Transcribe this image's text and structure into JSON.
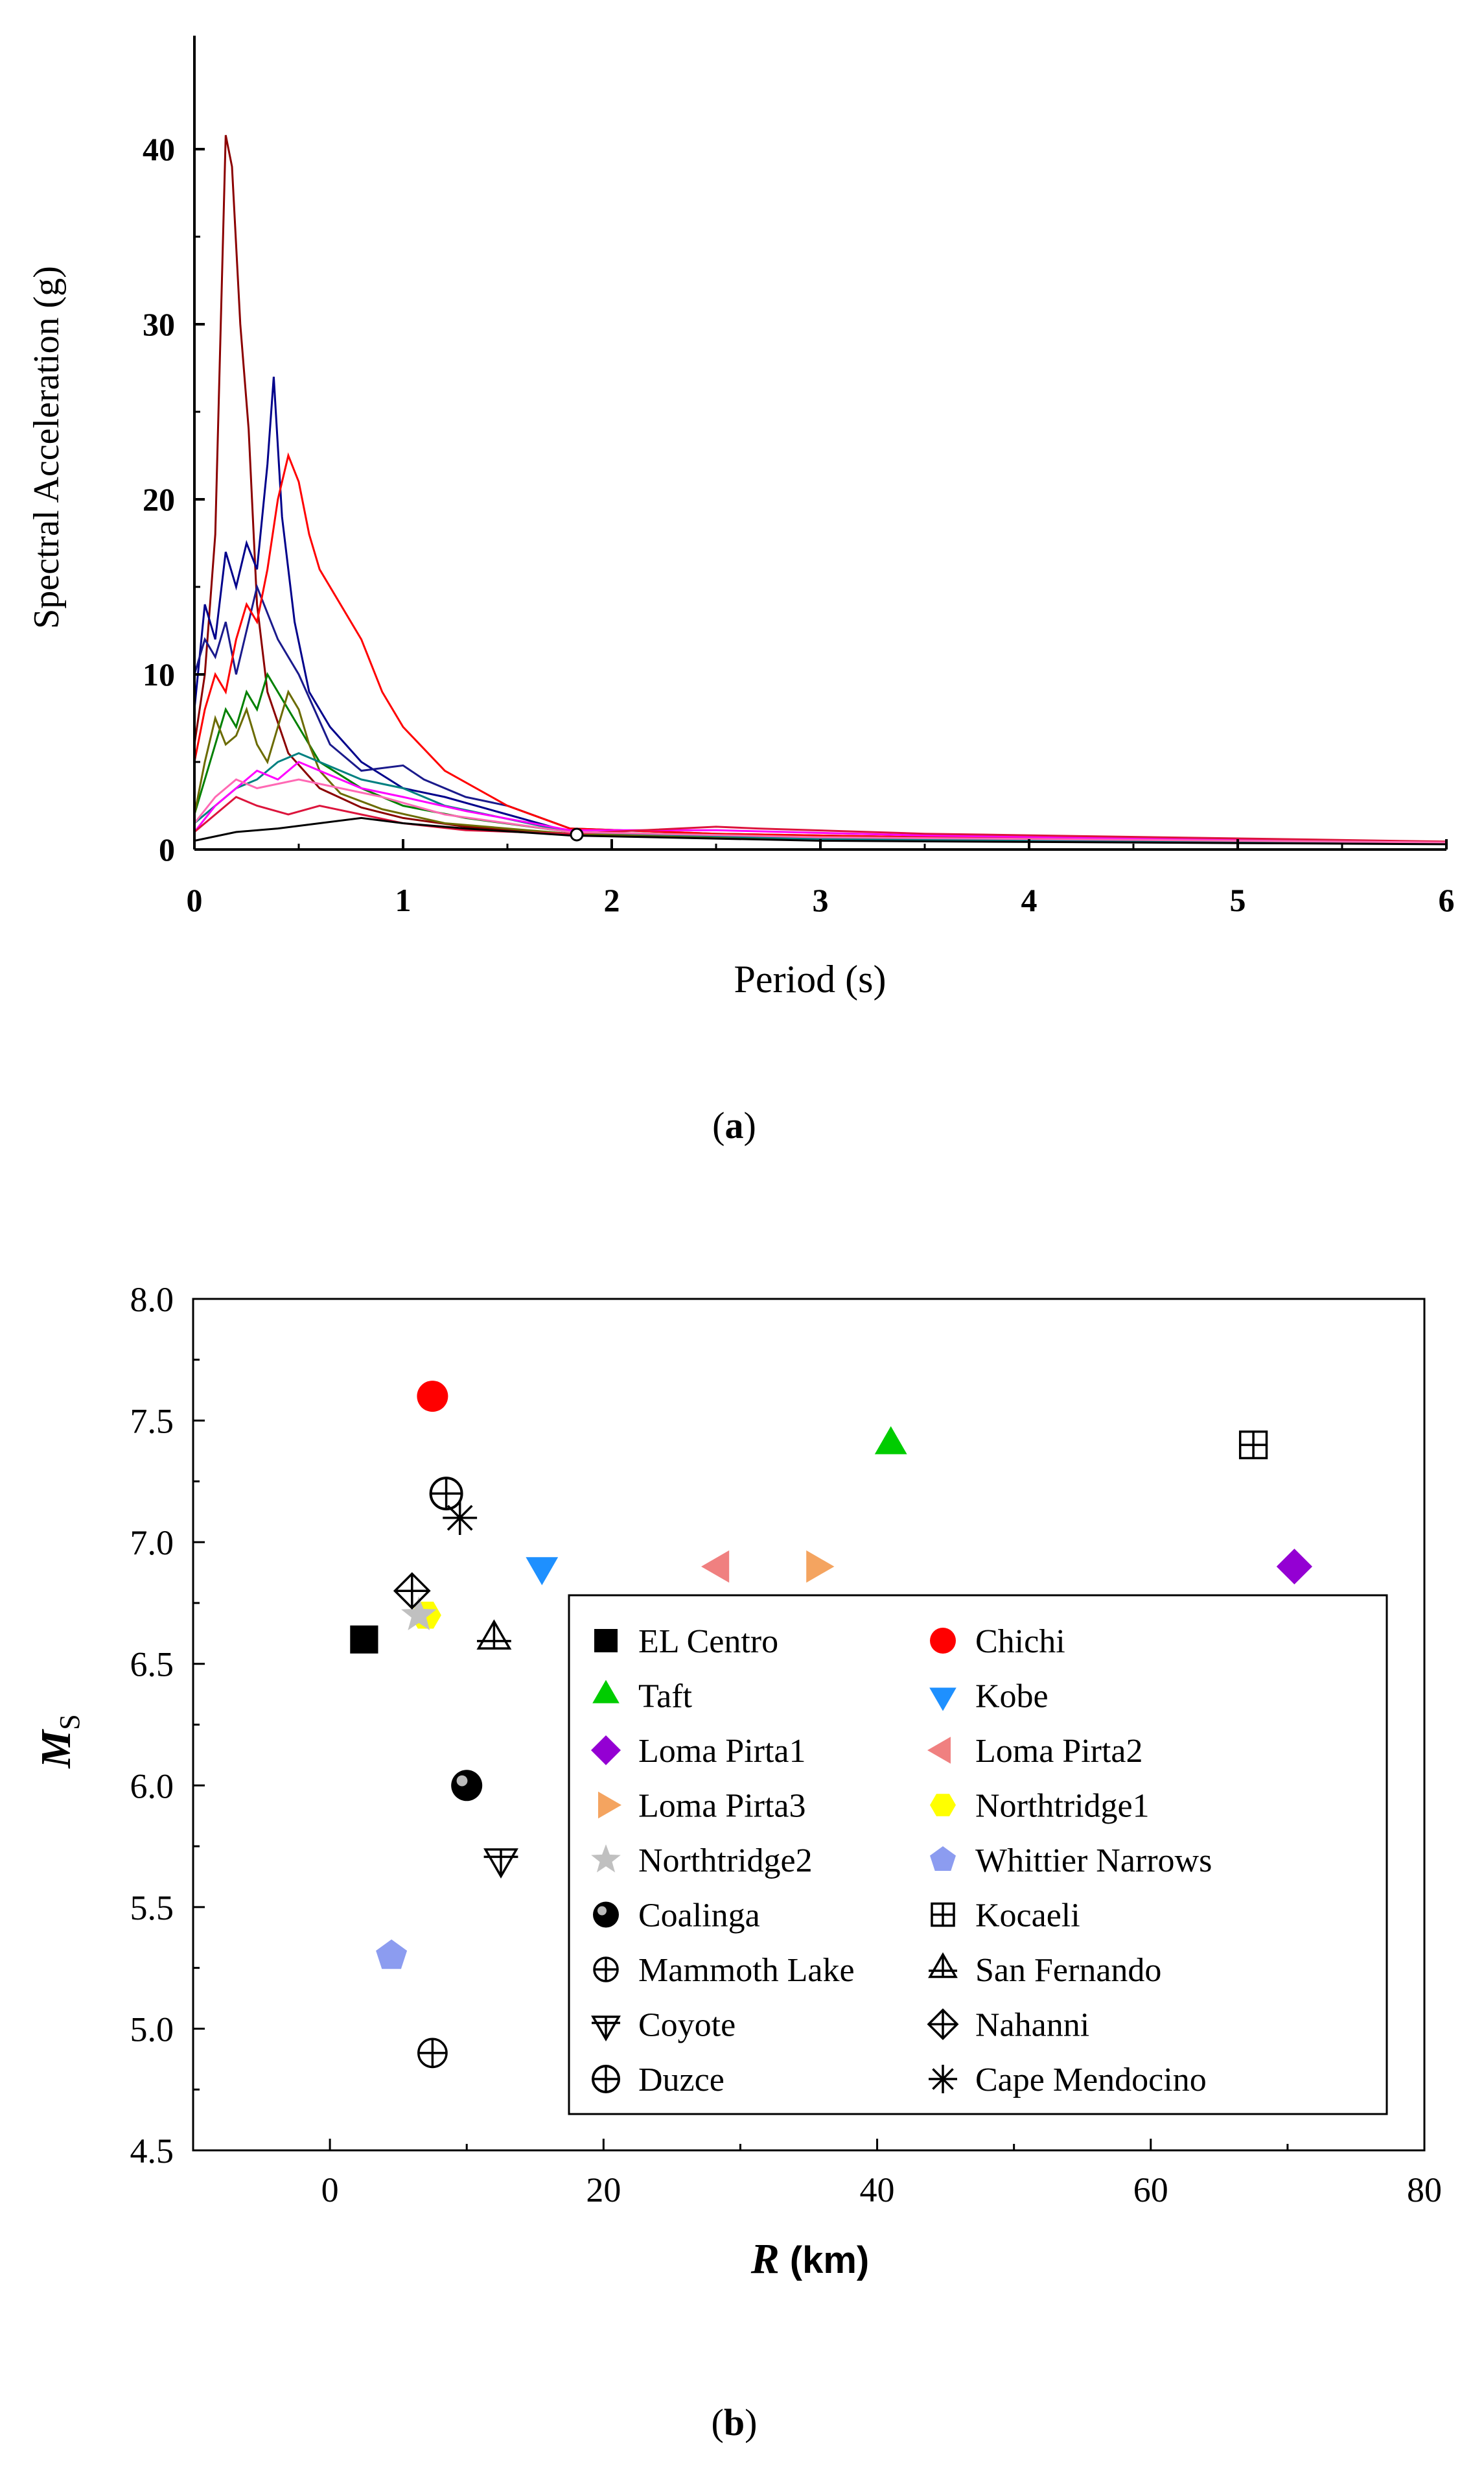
{
  "figure": {
    "caption_a": "(a)",
    "caption_a_letter": "a",
    "caption_b_letter": "b"
  },
  "chart_data": [
    {
      "id": "a",
      "type": "line",
      "title": "",
      "xlabel": "Period (s)",
      "ylabel": "Spectral Acceleration (g)",
      "xlim": [
        0,
        6
      ],
      "ylim": [
        0,
        45
      ],
      "xticks": [
        "0",
        "1",
        "2",
        "3",
        "4",
        "5",
        "6"
      ],
      "yticks": [
        "0",
        "10",
        "20",
        "30",
        "40"
      ],
      "series": [
        {
          "name": "dark red",
          "color": "#8b0000",
          "x": [
            0,
            0.05,
            0.1,
            0.15,
            0.18,
            0.22,
            0.26,
            0.3,
            0.35,
            0.45,
            0.6,
            0.8,
            1.0,
            1.3,
            1.8,
            2.5,
            3.5,
            6
          ],
          "y": [
            6,
            10,
            18,
            40.8,
            39,
            30,
            24,
            14,
            9,
            5.5,
            3.5,
            2.4,
            1.8,
            1.3,
            0.9,
            0.8,
            0.7,
            0.35
          ]
        },
        {
          "name": "blue",
          "color": "#00008b",
          "x": [
            0,
            0.05,
            0.1,
            0.15,
            0.2,
            0.25,
            0.3,
            0.35,
            0.38,
            0.42,
            0.48,
            0.55,
            0.65,
            0.8,
            1.0,
            1.2,
            1.5,
            1.8,
            2.5,
            3.5,
            6
          ],
          "y": [
            8,
            14,
            12,
            17,
            15,
            17.5,
            16,
            22,
            27,
            19,
            13,
            9,
            7,
            5,
            3.5,
            3,
            2,
            1,
            0.8,
            0.7,
            0.4
          ]
        },
        {
          "name": "navy 2",
          "color": "#1a1a8c",
          "x": [
            0,
            0.05,
            0.1,
            0.15,
            0.2,
            0.3,
            0.4,
            0.5,
            0.65,
            0.8,
            1.0,
            1.1,
            1.3,
            1.5,
            1.8,
            2.5,
            4,
            6
          ],
          "y": [
            10,
            12,
            11,
            13,
            10,
            15,
            12,
            10,
            6,
            4.5,
            4.8,
            4,
            3,
            2.5,
            1.2,
            0.9,
            0.6,
            0.4
          ]
        },
        {
          "name": "red",
          "color": "#ff0000",
          "x": [
            0,
            0.05,
            0.1,
            0.15,
            0.2,
            0.25,
            0.3,
            0.35,
            0.4,
            0.45,
            0.5,
            0.55,
            0.6,
            0.7,
            0.8,
            0.9,
            1.0,
            1.2,
            1.5,
            1.8,
            2.5,
            3.5,
            6
          ],
          "y": [
            5,
            8,
            10,
            9,
            12,
            14,
            13,
            16,
            20,
            22.5,
            21,
            18,
            16,
            14,
            12,
            9,
            7,
            4.5,
            2.5,
            1.2,
            0.9,
            0.7,
            0.4
          ]
        },
        {
          "name": "green",
          "color": "#008000",
          "x": [
            0,
            0.05,
            0.1,
            0.15,
            0.2,
            0.25,
            0.3,
            0.35,
            0.4,
            0.5,
            0.6,
            0.8,
            1.0,
            1.3,
            1.8,
            3,
            6
          ],
          "y": [
            2,
            4,
            6,
            8,
            7,
            9,
            8,
            10,
            9,
            7,
            5,
            3.5,
            2.5,
            1.8,
            1,
            0.7,
            0.4
          ]
        },
        {
          "name": "olive",
          "color": "#6b6b00",
          "x": [
            0,
            0.05,
            0.1,
            0.15,
            0.2,
            0.25,
            0.3,
            0.35,
            0.4,
            0.45,
            0.5,
            0.55,
            0.6,
            0.7,
            0.9,
            1.2,
            1.8,
            3,
            6
          ],
          "y": [
            2,
            5,
            7.5,
            6,
            6.5,
            8,
            6,
            5,
            7,
            9,
            8,
            6,
            4.5,
            3.2,
            2.3,
            1.5,
            0.9,
            0.6,
            0.35
          ]
        },
        {
          "name": "teal",
          "color": "#008080",
          "x": [
            0,
            0.1,
            0.2,
            0.3,
            0.4,
            0.5,
            0.6,
            0.7,
            0.8,
            1.0,
            1.2,
            1.8,
            3,
            6
          ],
          "y": [
            1.5,
            2.5,
            3.5,
            4,
            5,
            5.5,
            5,
            4.5,
            4,
            3.5,
            2.5,
            1,
            0.6,
            0.35
          ]
        },
        {
          "name": "magenta",
          "color": "#ff00ff",
          "x": [
            0,
            0.1,
            0.2,
            0.3,
            0.4,
            0.5,
            0.6,
            0.8,
            1.0,
            1.3,
            1.8,
            2.5,
            3.5,
            6
          ],
          "y": [
            1,
            2.5,
            3.5,
            4.5,
            4,
            5,
            4.5,
            3.5,
            3,
            2.2,
            1.1,
            1.1,
            0.8,
            0.4
          ]
        },
        {
          "name": "crimson",
          "color": "#dc143c",
          "x": [
            0,
            0.1,
            0.2,
            0.3,
            0.45,
            0.6,
            0.8,
            1.0,
            1.3,
            1.8,
            2.5,
            2.7,
            3.5,
            6
          ],
          "y": [
            1,
            2,
            3,
            2.5,
            2,
            2.5,
            2,
            1.5,
            1.1,
            0.9,
            1.3,
            1.2,
            0.9,
            0.45
          ]
        },
        {
          "name": "pink",
          "color": "#ff69b4",
          "x": [
            0,
            0.1,
            0.2,
            0.3,
            0.5,
            0.7,
            0.9,
            1.2,
            1.8,
            3,
            6
          ],
          "y": [
            1.5,
            3,
            4,
            3.5,
            4,
            3.5,
            3,
            2,
            1,
            0.7,
            0.4
          ]
        },
        {
          "name": "black",
          "color": "#000000",
          "x": [
            0,
            0.2,
            0.4,
            0.6,
            0.8,
            1.0,
            1.3,
            1.8,
            3,
            6
          ],
          "y": [
            0.5,
            1,
            1.2,
            1.5,
            1.8,
            1.5,
            1.2,
            0.8,
            0.5,
            0.3
          ]
        }
      ]
    },
    {
      "id": "b",
      "type": "scatter",
      "title": "",
      "xlabel": "R",
      "xlabel_unit": "(km)",
      "ylabel": "M",
      "ylabel_sub": "S",
      "xlim": [
        -10,
        80
      ],
      "ylim": [
        4.5,
        8.0
      ],
      "xticks": [
        "0",
        "20",
        "40",
        "60",
        "80"
      ],
      "yticks": [
        "4.5",
        "5.0",
        "5.5",
        "6.0",
        "6.5",
        "7.0",
        "7.5",
        "8.0"
      ],
      "points": [
        {
          "name": "EL Centro",
          "x": 2.5,
          "y": 6.6,
          "marker": "square",
          "color": "#000000"
        },
        {
          "name": "Chichi",
          "x": 7.5,
          "y": 7.6,
          "marker": "circle",
          "color": "#ff0000"
        },
        {
          "name": "Taft",
          "x": 41,
          "y": 7.4,
          "marker": "triangle-up",
          "color": "#00cc00"
        },
        {
          "name": "Kobe",
          "x": 15.5,
          "y": 6.9,
          "marker": "triangle-down",
          "color": "#1e90ff"
        },
        {
          "name": "Loma Pirta1",
          "x": 70.5,
          "y": 6.9,
          "marker": "diamond",
          "color": "#9400d3"
        },
        {
          "name": "Loma Pirta2",
          "x": 28.5,
          "y": 6.9,
          "marker": "triangle-left",
          "color": "#f08080"
        },
        {
          "name": "Loma Pirta3",
          "x": 35.5,
          "y": 6.9,
          "marker": "triangle-right",
          "color": "#f4a460"
        },
        {
          "name": "Northtridge1",
          "x": 7.0,
          "y": 6.7,
          "marker": "hexagon",
          "color": "#ffff00"
        },
        {
          "name": "Northtridge2",
          "x": 6.5,
          "y": 6.7,
          "marker": "star",
          "color": "#c0c0c0"
        },
        {
          "name": "Whittier Narrows",
          "x": 4.5,
          "y": 5.3,
          "marker": "pentagon",
          "color": "#8c9cf0"
        },
        {
          "name": "Coalinga",
          "x": 10.0,
          "y": 6.0,
          "marker": "ball",
          "color": "#000000"
        },
        {
          "name": "Kocaeli",
          "x": 67.5,
          "y": 7.4,
          "marker": "square-plus",
          "color": "#000000"
        },
        {
          "name": "Mammoth Lake",
          "x": 7.5,
          "y": 4.9,
          "marker": "circle-plus",
          "color": "#000000"
        },
        {
          "name": "San Fernando",
          "x": 12.0,
          "y": 6.6,
          "marker": "triangle-plus",
          "color": "#000000"
        },
        {
          "name": "Coyote",
          "x": 12.5,
          "y": 5.7,
          "marker": "triangle-down-plus",
          "color": "#000000"
        },
        {
          "name": "Nahanni",
          "x": 6.0,
          "y": 6.8,
          "marker": "diamond-plus",
          "color": "#000000"
        },
        {
          "name": "Duzce",
          "x": 8.5,
          "y": 7.2,
          "marker": "circle-plus-thick",
          "color": "#000000"
        },
        {
          "name": "Cape Mendocino",
          "x": 9.5,
          "y": 7.1,
          "marker": "asterisk",
          "color": "#000000"
        }
      ],
      "legend_order": [
        [
          "EL Centro",
          "Chichi"
        ],
        [
          "Taft",
          "Kobe"
        ],
        [
          "Loma Pirta1",
          "Loma Pirta2"
        ],
        [
          "Loma Pirta3",
          "Northtridge1"
        ],
        [
          "Northtridge2",
          "Whittier Narrows"
        ],
        [
          "Coalinga",
          "Kocaeli"
        ],
        [
          "Mammoth Lake",
          "San Fernando"
        ],
        [
          "Coyote",
          "Nahanni"
        ],
        [
          "Duzce",
          "Cape Mendocino"
        ]
      ],
      "legend_position": "lower-right"
    }
  ]
}
